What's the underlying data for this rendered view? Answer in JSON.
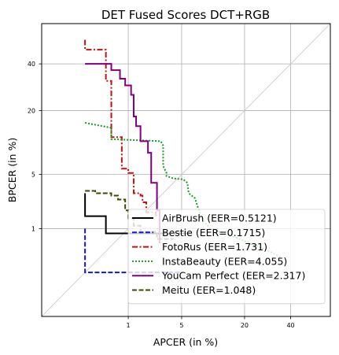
{
  "chart_data": {
    "type": "line",
    "title": "DET Fused Scores DCT+RGB",
    "xlabel": "APCER (in %)",
    "ylabel": "BPCER (in %)",
    "scale": "normal-deviate (probit)",
    "xlim": [
      0.03,
      60
    ],
    "ylim": [
      0.03,
      60
    ],
    "xticks": [
      1,
      5,
      20,
      40
    ],
    "yticks": [
      1,
      5,
      20,
      40
    ],
    "grid": true,
    "diagonal": true,
    "legend_position": "lower-right",
    "series": [
      {
        "name": "AirBrush (EER=0.5121)",
        "color": "#000000",
        "dash": "solid",
        "points": [
          [
            0.2,
            3.0
          ],
          [
            0.2,
            1.5
          ],
          [
            0.45,
            1.5
          ],
          [
            0.45,
            0.85
          ],
          [
            6.5,
            0.85
          ]
        ]
      },
      {
        "name": "Bestie (EER=0.1715)",
        "color": "#1414e6",
        "dash": "dashed",
        "points": [
          [
            0.2,
            1.0
          ],
          [
            0.2,
            0.2
          ],
          [
            5.0,
            0.2
          ]
        ]
      },
      {
        "name": "FotoRus (EER=1.731)",
        "color": "#c41010",
        "dash": "dashdot",
        "points": [
          [
            0.2,
            52.0
          ],
          [
            0.2,
            47.0
          ],
          [
            0.45,
            47.0
          ],
          [
            0.45,
            32.0
          ],
          [
            0.55,
            32.0
          ],
          [
            0.55,
            12.0
          ],
          [
            0.8,
            12.0
          ],
          [
            0.8,
            5.8
          ],
          [
            1.0,
            5.8
          ],
          [
            1.0,
            5.2
          ],
          [
            1.2,
            5.2
          ],
          [
            1.2,
            3.0
          ],
          [
            1.5,
            3.0
          ],
          [
            1.5,
            2.8
          ],
          [
            1.6,
            2.8
          ],
          [
            1.6,
            2.3
          ],
          [
            1.8,
            2.3
          ],
          [
            1.8,
            1.7
          ],
          [
            2.4,
            1.7
          ],
          [
            2.4,
            1.5
          ]
        ]
      },
      {
        "name": "InstaBeauty (EER=4.055)",
        "color": "#10a020",
        "dash": "dotted",
        "points": [
          [
            0.2,
            16.0
          ],
          [
            0.55,
            14.5
          ],
          [
            0.55,
            11.5
          ],
          [
            2.8,
            11.0
          ],
          [
            3.0,
            10.0
          ],
          [
            3.0,
            6.2
          ],
          [
            3.3,
            5.2
          ],
          [
            3.3,
            4.8
          ],
          [
            4.0,
            4.5
          ],
          [
            5.2,
            4.4
          ],
          [
            5.8,
            4.0
          ],
          [
            6.0,
            3.0
          ],
          [
            7.0,
            2.6
          ],
          [
            7.5,
            2.0
          ],
          [
            8.0,
            1.6
          ],
          [
            8.5,
            1.3
          ],
          [
            10.0,
            1.0
          ],
          [
            14.0,
            0.85
          ],
          [
            30.0,
            0.45
          ],
          [
            36.0,
            0.35
          ]
        ]
      },
      {
        "name": "YouCam Perfect (EER=2.317)",
        "color": "#800080",
        "dash": "solid",
        "points": [
          [
            0.2,
            40.0
          ],
          [
            0.55,
            40.0
          ],
          [
            0.55,
            37.0
          ],
          [
            0.75,
            37.0
          ],
          [
            0.75,
            33.0
          ],
          [
            0.9,
            33.0
          ],
          [
            0.9,
            30.0
          ],
          [
            1.1,
            30.0
          ],
          [
            1.1,
            26.0
          ],
          [
            1.2,
            26.0
          ],
          [
            1.2,
            18.0
          ],
          [
            1.3,
            18.0
          ],
          [
            1.3,
            15.0
          ],
          [
            1.5,
            15.0
          ],
          [
            1.5,
            11.0
          ],
          [
            1.9,
            11.0
          ],
          [
            1.9,
            8.5
          ],
          [
            2.1,
            8.5
          ],
          [
            2.1,
            4.0
          ],
          [
            2.5,
            4.0
          ],
          [
            2.5,
            1.8
          ],
          [
            2.7,
            1.8
          ],
          [
            2.7,
            0.6
          ]
        ]
      },
      {
        "name": "Meitu (EER=1.048)",
        "color": "#3d4a00",
        "dash": "dashed",
        "points": [
          [
            0.2,
            3.2
          ],
          [
            0.3,
            3.2
          ],
          [
            0.3,
            3.0
          ],
          [
            0.55,
            3.0
          ],
          [
            0.55,
            2.8
          ],
          [
            0.7,
            2.8
          ],
          [
            0.7,
            2.5
          ],
          [
            0.9,
            2.5
          ],
          [
            0.9,
            1.8
          ],
          [
            1.0,
            1.8
          ],
          [
            1.0,
            1.4
          ],
          [
            1.2,
            1.4
          ],
          [
            1.2,
            1.1
          ],
          [
            1.5,
            1.1
          ],
          [
            1.5,
            0.9
          ],
          [
            2.5,
            0.9
          ],
          [
            2.5,
            0.7
          ],
          [
            4.0,
            0.7
          ]
        ]
      }
    ]
  }
}
